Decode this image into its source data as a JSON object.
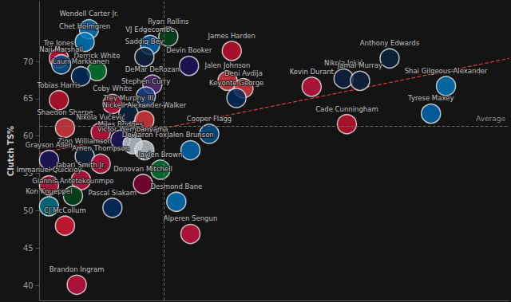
{
  "chart_data": {
    "type": "scatter",
    "y_label": "Clutch TS%",
    "xlim": [
      0,
      100
    ],
    "ylim": [
      38,
      78
    ],
    "yticks": [
      40,
      45,
      50,
      55,
      60,
      65,
      70
    ],
    "tick_labels": "y",
    "grid": false,
    "marker": "circle",
    "labels": [
      "Wendell Carter Jr.",
      "Ryan Rollins",
      "Chet Holmgren",
      "VJ Edgecombe",
      "James Harden",
      "Tre Jones",
      "Saddiq Bey",
      "Devin Booker",
      "Naji Marshall",
      "Anthony Edwards",
      "Derrick White",
      "Lauri Markkanen",
      "Jalen Johnson",
      "Nikola Jokić",
      "DeMar DeRozan",
      "Deni Avdija",
      "Kevin Durant",
      "Jamal Murray",
      "Shai Gilgeous-Alexander",
      "Stephen Curry",
      "Keyonte George",
      "Tobias Harris",
      "Coby White",
      "Trey Murphy III",
      "Tyrese Maxey",
      "Nickell Alexander-Walker",
      "Cade Cunningham",
      "Shaedon Sharpe",
      "Nikola Vučević",
      "Cooper Flagg",
      "Miles Bridges",
      "Victor Wembanyama",
      "De'Aaron Fox",
      "Jalen Brunson",
      "Zion Williamson",
      "Amen Thompson",
      "Grayson Allen",
      "Jaylen Brown",
      "Immanuel Quickley",
      "Jabari Smith Jr.",
      "Donovan Mitchell",
      "Giannis Antetokounmpo",
      "Desmond Bane",
      "Kon Knueppel",
      "Pascal Siakam",
      "CJ McCollum",
      "Alperen Sengun",
      "Brandon Ingram"
    ],
    "x": [
      10.5,
      27.4,
      9.6,
      23.5,
      40.9,
      4.1,
      22.3,
      31.8,
      4.6,
      74.5,
      12.2,
      8.8,
      40.0,
      64.7,
      24.0,
      43.4,
      57.9,
      68.2,
      86.5,
      22.6,
      41.9,
      4.1,
      15.5,
      18.9,
      83.3,
      22.3,
      65.4,
      5.4,
      13.0,
      36.1,
      17.2,
      19.8,
      22.3,
      32.1,
      9.6,
      13.0,
      2.0,
      25.7,
      2.0,
      8.8,
      22.0,
      7.1,
      29.1,
      2.0,
      15.5,
      5.4,
      32.1,
      7.9
    ],
    "values": [
      74.3,
      73.3,
      72.6,
      72.2,
      71.4,
      70.4,
      70.6,
      69.4,
      69.6,
      70.4,
      68.7,
      68.0,
      67.4,
      67.7,
      66.9,
      66.4,
      66.6,
      67.4,
      66.7,
      65.3,
      65.1,
      64.8,
      64.3,
      63.0,
      63.0,
      62.1,
      61.6,
      61.1,
      60.5,
      60.3,
      59.5,
      58.9,
      58.1,
      58.1,
      57.3,
      56.3,
      56.8,
      55.5,
      53.4,
      54.1,
      53.6,
      52.0,
      51.2,
      50.6,
      50.4,
      48.0,
      46.9,
      40.1
    ],
    "colors": [
      "#0077c0",
      "#00471b",
      "#007ac1",
      "#006bb6",
      "#c8102e",
      "#ce1141",
      "#0c2340",
      "#1d1160",
      "#00538c",
      "#0c2340",
      "#007a33",
      "#002b5c",
      "#e03a3e",
      "#0e2240",
      "#5a2d81",
      "#e03a3e",
      "#ce1141",
      "#0e2240",
      "#007ac1",
      "#1d428a",
      "#002b5c",
      "#c8102e",
      "#ce1141",
      "#0c2340",
      "#006bb6",
      "#e03a3e",
      "#c8102e",
      "#e03a3e",
      "#ce1141",
      "#00538c",
      "#1d1160",
      "#c4ced4",
      "#c4ced4",
      "#006bb6",
      "#0c2340",
      "#ce1141",
      "#1d1160",
      "#007a33",
      "#ce1141",
      "#ce1141",
      "#860038",
      "#00471b",
      "#0077c0",
      "#00788c",
      "#002d62",
      "#e31837",
      "#ce1141",
      "#ce1141"
    ],
    "annotations": [
      {
        "type": "hline",
        "y": 61.3,
        "label": "Average"
      },
      {
        "type": "vline",
        "x": 26.5
      },
      {
        "type": "trendline",
        "x": [
          0,
          100
        ],
        "y": [
          57.7,
          70.4
        ],
        "color": "#e03a3e"
      }
    ]
  }
}
